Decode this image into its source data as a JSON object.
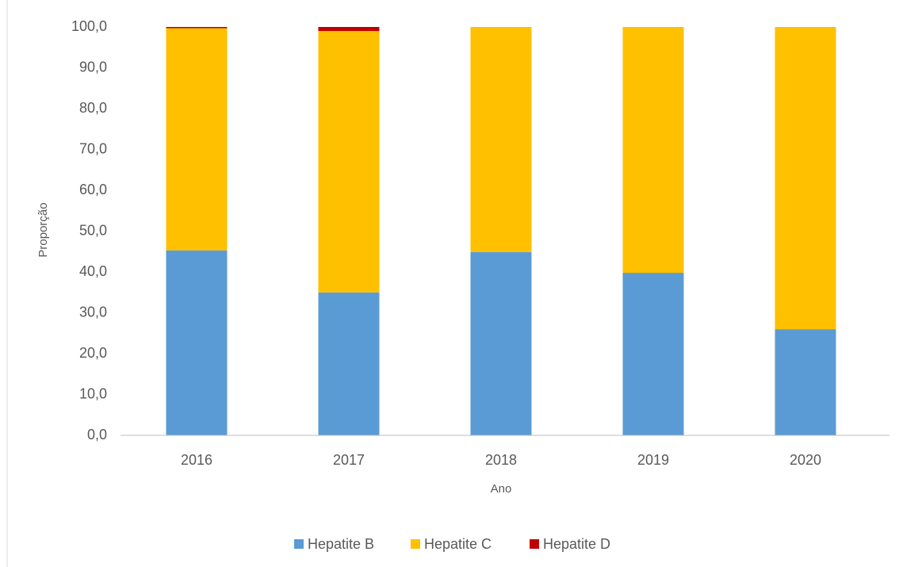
{
  "chart_data": {
    "type": "stacked_bar",
    "x_label": "Ano",
    "y_label": "Proporção",
    "categories": [
      "2016",
      "2017",
      "2018",
      "2019",
      "2020"
    ],
    "series": [
      {
        "name": "Hepatite B",
        "color": "#5b9bd5",
        "values": [
          45.3,
          35.0,
          44.9,
          39.8,
          26.0
        ]
      },
      {
        "name": "Hepatite C",
        "color": "#ffc000",
        "values": [
          54.4,
          64.0,
          55.1,
          60.2,
          74.0
        ]
      },
      {
        "name": "Hepatite D",
        "color": "#c00000",
        "values": [
          0.3,
          1.0,
          0,
          0,
          0
        ]
      }
    ],
    "ylim": [
      0,
      100
    ],
    "yticks": [
      {
        "value": 0,
        "label": "0,0"
      },
      {
        "value": 10,
        "label": "10,0"
      },
      {
        "value": 20,
        "label": "20,0"
      },
      {
        "value": 30,
        "label": "30,0"
      },
      {
        "value": 40,
        "label": "40,0"
      },
      {
        "value": 50,
        "label": "50,0"
      },
      {
        "value": 60,
        "label": "60,0"
      },
      {
        "value": 70,
        "label": "70,0"
      },
      {
        "value": 80,
        "label": "80,0"
      },
      {
        "value": 90,
        "label": "90,0"
      },
      {
        "value": 100,
        "label": "100,0"
      }
    ],
    "grid": false,
    "legend": "bottom"
  }
}
